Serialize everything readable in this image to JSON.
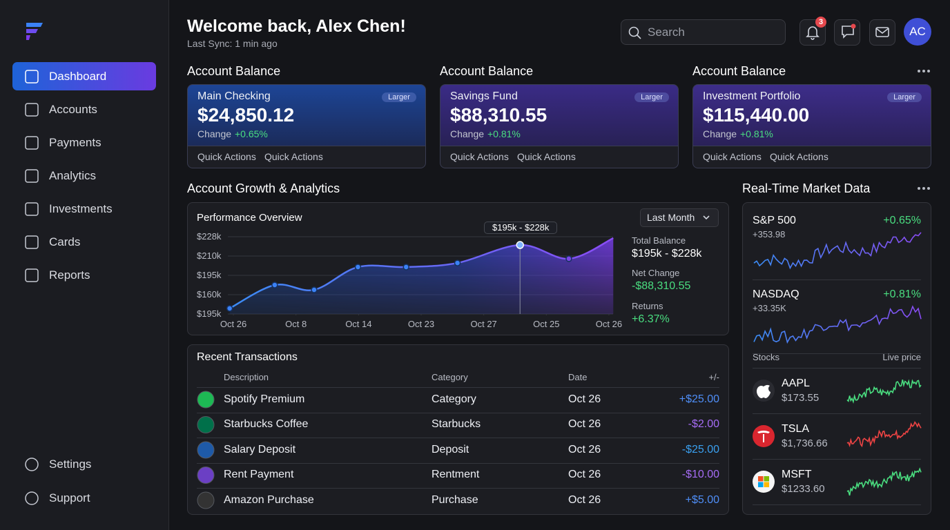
{
  "sidebar": {
    "nav": [
      "Dashboard",
      "Accounts",
      "Payments",
      "Analytics",
      "Investments",
      "Cards",
      "Reports"
    ],
    "footer_nav": [
      "Settings",
      "Support"
    ]
  },
  "header": {
    "title": "Welcome back, Alex Chen!",
    "subtitle": "Last Sync: 1 min ago",
    "search_placeholder": "Search",
    "notification_count": 3,
    "avatar": "AC"
  },
  "accounts": {
    "section_titles": [
      "Account Balance",
      "Account Balance",
      "Account Balance"
    ],
    "cards": [
      {
        "name": "Main Checking",
        "badge": "Larger",
        "balance": "$24,850.12",
        "change_label": "Change",
        "change": "+0.65%",
        "actions": [
          "Quick Actions",
          "Quick Actions"
        ]
      },
      {
        "name": "Savings Fund",
        "badge": "Larger",
        "balance": "$88,310.55",
        "change_label": "Change",
        "change": "+0.81%",
        "actions": [
          "Quick Actions",
          "Quick Actions"
        ]
      },
      {
        "name": "Investment Portfolio",
        "badge": "Larger",
        "balance": "$115,440.00",
        "change_label": "Change",
        "change": "+0.81%",
        "actions": [
          "Quick Actions",
          "Quick Actions"
        ]
      }
    ]
  },
  "growth": {
    "section_title": "Account Growth & Analytics",
    "range_select": "Last Month",
    "tooltip": "$195k - $228k",
    "chart_data": {
      "type": "line",
      "title": "Performance Overview",
      "color": "#4a8cf0",
      "xlim": [
        -0.1,
        6.1
      ],
      "xticks": [
        {
          "value": 0,
          "label": "Oct 26"
        },
        {
          "value": 1,
          "label": "Oct 8"
        },
        {
          "value": 2,
          "label": "Oct 14"
        },
        {
          "value": 3,
          "label": "Oct 23"
        },
        {
          "value": 4,
          "label": "Oct 27"
        },
        {
          "value": 5,
          "label": "Oct 25"
        },
        {
          "value": 6,
          "label": "Oct 26"
        }
      ],
      "ylim": [
        0,
        4
      ],
      "yticks": [
        {
          "value": 4,
          "label": "$228k"
        },
        {
          "value": 3,
          "label": "$210k"
        },
        {
          "value": 2,
          "label": "$195k"
        },
        {
          "value": 1,
          "label": "$160k"
        },
        {
          "value": 0,
          "label": "$195k"
        }
      ],
      "grid": true,
      "x": [
        -0.06,
        0.66,
        1.29,
        1.99,
        2.76,
        3.58,
        4.58,
        5.36,
        6.07
      ],
      "values": [
        0.29,
        1.5,
        1.25,
        2.43,
        2.43,
        2.64,
        3.57,
        2.86,
        3.93
      ]
    },
    "stats": [
      {
        "label": "Total Balance",
        "value": "$195k - $228k",
        "color": "#ffffff"
      },
      {
        "label": "Net Change",
        "value": "-$88,310.55",
        "color": "#4ade80"
      },
      {
        "label": "Returns",
        "value": "+6.37%",
        "color": "#4ade80"
      }
    ]
  },
  "transactions": {
    "title": "Recent Transactions",
    "columns": [
      "Description",
      "Category",
      "Date",
      "+/-"
    ],
    "rows": [
      {
        "description": "Spotify Premium",
        "category": "Category",
        "date": "Oct 26",
        "amount": "+$25.00",
        "color": "#4f8ef7"
      },
      {
        "description": "Starbucks Coffee",
        "category": "Starbucks",
        "date": "Oct 26",
        "amount": "-$2.00",
        "color": "#a66cf5"
      },
      {
        "description": "Salary Deposit",
        "category": "Deposit",
        "date": "Oct 26",
        "amount": "-$25.00",
        "color": "#3aa0f0"
      },
      {
        "description": "Rent Payment",
        "category": "Rentment",
        "date": "Oct 26",
        "amount": "-$10.00",
        "color": "#a66cf5"
      },
      {
        "description": "Amazon Purchase",
        "category": "Purchase",
        "date": "Oct 26",
        "amount": "+$5.00",
        "color": "#4f8ef7"
      }
    ]
  },
  "market": {
    "title": "Real-Time Market Data",
    "indices": [
      {
        "name": "S&P 500",
        "change": "+0.65%",
        "points": "+353.98"
      },
      {
        "name": "NASDAQ",
        "change": "+0.81%",
        "points": "+33.35K"
      }
    ],
    "stocks_label": "Stocks",
    "price_label": "Live price",
    "stocks": [
      {
        "ticker": "AAPL",
        "price": "$173.55"
      },
      {
        "ticker": "TSLA",
        "price": "$1,736.66"
      },
      {
        "ticker": "MSFT",
        "price": "$1233.60"
      }
    ]
  }
}
